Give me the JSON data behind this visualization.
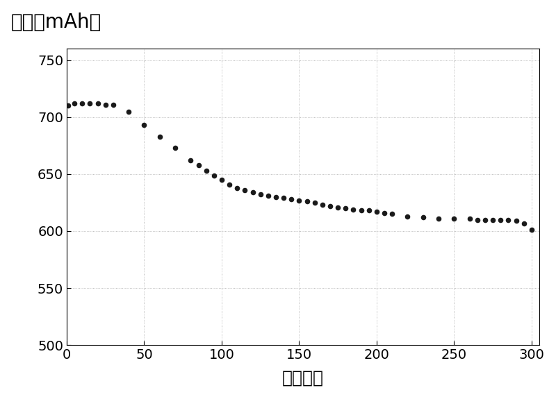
{
  "x": [
    1,
    5,
    10,
    15,
    20,
    25,
    30,
    40,
    50,
    60,
    70,
    80,
    85,
    90,
    95,
    100,
    105,
    110,
    115,
    120,
    125,
    130,
    135,
    140,
    145,
    150,
    155,
    160,
    165,
    170,
    175,
    180,
    185,
    190,
    195,
    200,
    205,
    210,
    220,
    230,
    240,
    250,
    260,
    265,
    270,
    275,
    280,
    285,
    290,
    295,
    300
  ],
  "y": [
    710,
    712,
    712,
    712,
    712,
    711,
    711,
    705,
    693,
    683,
    673,
    662,
    658,
    653,
    649,
    645,
    641,
    638,
    636,
    634,
    632,
    631,
    630,
    629,
    628,
    627,
    626,
    625,
    623,
    622,
    621,
    620,
    619,
    618,
    618,
    617,
    616,
    615,
    613,
    612,
    611,
    611,
    611,
    610,
    610,
    610,
    610,
    610,
    609,
    607,
    601
  ],
  "dot_color": "#1a1a1a",
  "dot_size": 30,
  "title": "容量（mAh）",
  "xlabel": "循环次数",
  "xlim": [
    0,
    305
  ],
  "ylim": [
    500,
    760
  ],
  "xticks": [
    0,
    50,
    100,
    150,
    200,
    250,
    300
  ],
  "yticks": [
    500,
    550,
    600,
    650,
    700,
    750
  ],
  "title_fontsize": 20,
  "xlabel_fontsize": 18,
  "tick_fontsize": 14,
  "bg_color": "#ffffff",
  "plot_bg_color": "#ffffff"
}
